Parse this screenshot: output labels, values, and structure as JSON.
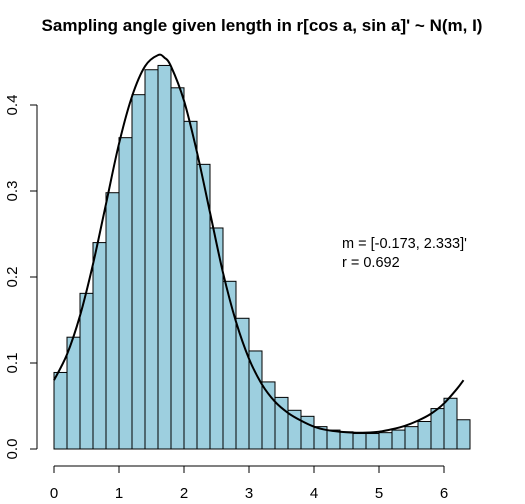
{
  "chart_data": {
    "type": "bar",
    "title": "Sampling angle given length in r[cos a, sin a]' ~ N(m, I)",
    "xlabel": "",
    "ylabel": "",
    "xlim": [
      0,
      6.5
    ],
    "ylim": [
      0,
      0.45
    ],
    "grid": false,
    "bin_width": 0.2,
    "bin_starts": [
      0.0,
      0.2,
      0.4,
      0.6,
      0.8,
      1.0,
      1.2,
      1.4,
      1.6,
      1.8,
      2.0,
      2.2,
      2.4,
      2.6,
      2.8,
      3.0,
      3.2,
      3.4,
      3.6,
      3.8,
      4.0,
      4.2,
      4.4,
      4.6,
      4.8,
      5.0,
      5.2,
      5.4,
      5.6,
      5.8,
      6.0,
      6.2
    ],
    "values": [
      0.089,
      0.13,
      0.181,
      0.24,
      0.298,
      0.362,
      0.412,
      0.441,
      0.446,
      0.42,
      0.381,
      0.331,
      0.257,
      0.195,
      0.152,
      0.114,
      0.078,
      0.06,
      0.045,
      0.038,
      0.026,
      0.022,
      0.02,
      0.018,
      0.018,
      0.019,
      0.022,
      0.026,
      0.032,
      0.047,
      0.059,
      0.034
    ],
    "x_ticks": [
      0,
      1,
      2,
      3,
      4,
      5,
      6
    ],
    "x_tick_labels": [
      "0",
      "1",
      "2",
      "3",
      "4",
      "5",
      "6"
    ],
    "y_ticks": [
      0.0,
      0.1,
      0.2,
      0.3,
      0.4
    ],
    "y_tick_labels": [
      "0.0",
      "0.1",
      "0.2",
      "0.3",
      "0.4"
    ],
    "density_curve": {
      "x": [
        0.0,
        0.2,
        0.4,
        0.6,
        0.8,
        1.0,
        1.2,
        1.4,
        1.6,
        1.7,
        1.8,
        2.0,
        2.2,
        2.4,
        2.6,
        2.8,
        3.0,
        3.2,
        3.4,
        3.6,
        3.8,
        4.0,
        4.2,
        4.4,
        4.6,
        4.8,
        5.0,
        5.2,
        5.4,
        5.6,
        5.8,
        6.0,
        6.2,
        6.3
      ],
      "y": [
        0.08,
        0.11,
        0.155,
        0.215,
        0.285,
        0.355,
        0.41,
        0.445,
        0.458,
        0.455,
        0.445,
        0.405,
        0.345,
        0.275,
        0.205,
        0.148,
        0.105,
        0.075,
        0.055,
        0.042,
        0.033,
        0.026,
        0.022,
        0.02,
        0.019,
        0.019,
        0.02,
        0.023,
        0.027,
        0.033,
        0.041,
        0.053,
        0.07,
        0.08
      ]
    },
    "colors": {
      "bar_fill": "#9dcfdf",
      "bar_stroke": "#000000",
      "curve": "#000000"
    },
    "annotations": [
      "m = [-0.173, 2.333]'",
      "r = 0.692"
    ]
  }
}
